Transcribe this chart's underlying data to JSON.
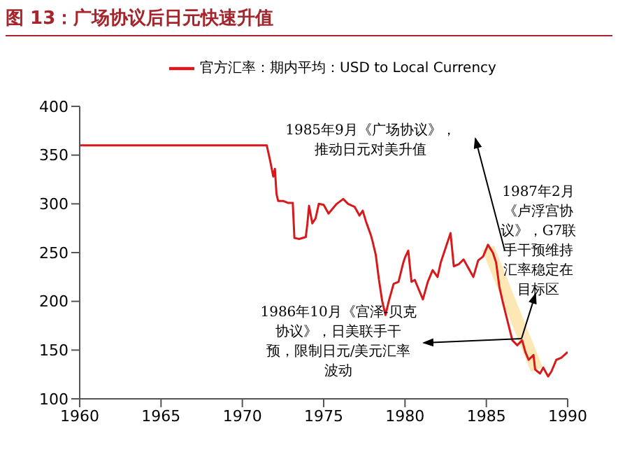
{
  "chart_data": {
    "type": "line",
    "title": "图 13：广场协议后日元快速升值",
    "xlim": [
      1960,
      1990
    ],
    "xticks": [
      1960,
      1965,
      1970,
      1975,
      1980,
      1985,
      1990
    ],
    "ylim": [
      100,
      400
    ],
    "yticks": [
      100,
      150,
      200,
      250,
      300,
      350,
      400
    ],
    "grid": false,
    "legend": "top",
    "marker": "none",
    "line_style": "solid",
    "series": [
      {
        "name": "官方汇率：期内平均：USD to Local Currency",
        "color": "#d7191c",
        "x": [
          1960,
          1971.5,
          1971.7,
          1971.9,
          1972.0,
          1972.1,
          1972.2,
          1972.5,
          1972.8,
          1973.1,
          1973.2,
          1973.5,
          1973.9,
          1974.0,
          1974.1,
          1974.3,
          1974.5,
          1974.7,
          1975.0,
          1975.3,
          1975.8,
          1976.2,
          1976.5,
          1976.9,
          1977.2,
          1977.4,
          1977.6,
          1977.9,
          1978.0,
          1978.2,
          1978.4,
          1978.6,
          1978.8,
          1979.0,
          1979.3,
          1979.6,
          1979.9,
          1980.0,
          1980.2,
          1980.4,
          1980.6,
          1980.9,
          1981.1,
          1981.4,
          1981.7,
          1982.0,
          1982.2,
          1982.5,
          1982.8,
          1983.0,
          1983.3,
          1983.6,
          1983.9,
          1984.2,
          1984.5,
          1984.8,
          1985.1,
          1985.4,
          1985.6,
          1985.8,
          1986.0,
          1986.3,
          1986.6,
          1986.9,
          1987.2,
          1987.4,
          1987.6,
          1987.9,
          1988.0,
          1988.3,
          1988.5,
          1988.8,
          1989.0,
          1989.3,
          1989.6,
          1990.0
        ],
        "values": [
          360,
          360,
          345,
          328,
          336,
          310,
          303,
          303,
          301,
          301,
          265,
          264,
          266,
          280,
          298,
          280,
          285,
          300,
          299,
          290,
          300,
          305,
          300,
          297,
          288,
          293,
          282,
          268,
          262,
          248,
          222,
          200,
          186,
          200,
          218,
          220,
          240,
          245,
          252,
          220,
          222,
          210,
          202,
          220,
          232,
          225,
          240,
          255,
          270,
          236,
          238,
          243,
          234,
          225,
          242,
          246,
          258,
          250,
          240,
          215,
          200,
          180,
          160,
          155,
          160,
          148,
          140,
          145,
          130,
          126,
          132,
          123,
          128,
          140,
          142,
          148
        ]
      },
      {
        "color": "#fde3a7",
        "x": [
          1985.1,
          1988.1
        ],
        "values": [
          255,
          130
        ]
      }
    ],
    "annotations": [
      "1985年9月《广场协议》，推动日元对美升值",
      "1987年2月《卢浮宫协议》，G7联手干预维持汇率稳定在目标区",
      "1986年10月《宫泽-贝克协议》，日美联手干预，限制日元/美元汇率波动"
    ]
  }
}
